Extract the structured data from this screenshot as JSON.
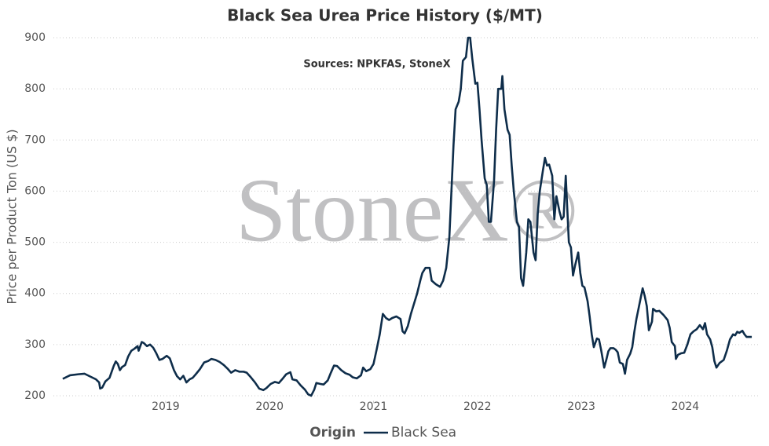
{
  "chart_data": {
    "type": "line",
    "title": "Black Sea Urea Price History ($/MT)",
    "annotation": "Sources: NPKFAS, StoneX",
    "watermark": "StoneX®",
    "y_label": "Price per Product Ton (US $)",
    "legend_title": "Origin",
    "legend_position": "bottom",
    "grid": true,
    "xlim": [
      2017.92,
      2024.7
    ],
    "xticks": [
      2019,
      2020,
      2021,
      2022,
      2023,
      2024
    ],
    "ylim": [
      190,
      910
    ],
    "yticks": [
      200,
      300,
      400,
      500,
      600,
      700,
      800,
      900
    ],
    "x": [
      2018.01,
      2018.08,
      2018.16,
      2018.22,
      2018.27,
      2018.33,
      2018.36,
      2018.37,
      2018.39,
      2018.42,
      2018.46,
      2018.5,
      2018.52,
      2018.54,
      2018.56,
      2018.58,
      2018.61,
      2018.64,
      2018.67,
      2018.7,
      2018.73,
      2018.74,
      2018.77,
      2018.79,
      2018.82,
      2018.85,
      2018.88,
      2018.91,
      2018.94,
      2018.97,
      2019.01,
      2019.04,
      2019.08,
      2019.11,
      2019.14,
      2019.17,
      2019.2,
      2019.23,
      2019.26,
      2019.29,
      2019.33,
      2019.37,
      2019.41,
      2019.44,
      2019.48,
      2019.52,
      2019.56,
      2019.6,
      2019.63,
      2019.67,
      2019.71,
      2019.75,
      2019.78,
      2019.82,
      2019.86,
      2019.9,
      2019.94,
      2019.97,
      2020.01,
      2020.05,
      2020.09,
      2020.12,
      2020.16,
      2020.2,
      2020.22,
      2020.26,
      2020.3,
      2020.34,
      2020.37,
      2020.4,
      2020.43,
      2020.45,
      2020.49,
      2020.52,
      2020.56,
      2020.59,
      2020.62,
      2020.65,
      2020.69,
      2020.73,
      2020.77,
      2020.8,
      2020.84,
      2020.88,
      2020.9,
      2020.93,
      2020.97,
      2021.0,
      2021.03,
      2021.06,
      2021.09,
      2021.12,
      2021.15,
      2021.18,
      2021.22,
      2021.26,
      2021.28,
      2021.3,
      2021.33,
      2021.36,
      2021.39,
      2021.42,
      2021.45,
      2021.47,
      2021.5,
      2021.54,
      2021.56,
      2021.6,
      2021.64,
      2021.67,
      2021.7,
      2021.73,
      2021.75,
      2021.77,
      2021.79,
      2021.82,
      2021.84,
      2021.86,
      2021.89,
      2021.91,
      2021.93,
      2021.95,
      2021.98,
      2022.0,
      2022.02,
      2022.04,
      2022.07,
      2022.09,
      2022.11,
      2022.13,
      2022.16,
      2022.18,
      2022.2,
      2022.23,
      2022.24,
      2022.26,
      2022.29,
      2022.31,
      2022.33,
      2022.35,
      2022.38,
      2022.4,
      2022.42,
      2022.44,
      2022.47,
      2022.49,
      2022.51,
      2022.54,
      2022.56,
      2022.58,
      2022.6,
      2022.63,
      2022.65,
      2022.67,
      2022.69,
      2022.72,
      2022.74,
      2022.76,
      2022.79,
      2022.81,
      2022.83,
      2022.85,
      2022.88,
      2022.9,
      2022.92,
      2022.94,
      2022.97,
      2022.99,
      2023.01,
      2023.03,
      2023.06,
      2023.08,
      2023.1,
      2023.12,
      2023.15,
      2023.17,
      2023.19,
      2023.22,
      2023.24,
      2023.26,
      2023.28,
      2023.31,
      2023.33,
      2023.35,
      2023.37,
      2023.4,
      2023.42,
      2023.44,
      2023.47,
      2023.49,
      2023.51,
      2023.53,
      2023.56,
      2023.59,
      2023.61,
      2023.63,
      2023.65,
      2023.68,
      2023.69,
      2023.72,
      2023.75,
      2023.79,
      2023.83,
      2023.85,
      2023.87,
      2023.9,
      2023.91,
      2023.93,
      2023.96,
      2023.99,
      2024.02,
      2024.05,
      2024.08,
      2024.11,
      2024.14,
      2024.17,
      2024.19,
      2024.21,
      2024.24,
      2024.26,
      2024.28,
      2024.3,
      2024.33,
      2024.37,
      2024.4,
      2024.43,
      2024.46,
      2024.48,
      2024.5,
      2024.52,
      2024.55,
      2024.57,
      2024.59,
      2024.64
    ],
    "series": [
      {
        "name": "Black Sea",
        "color": "#0e2d4a",
        "values": [
          233,
          240,
          242,
          243,
          238,
          232,
          226,
          214,
          216,
          228,
          235,
          258,
          267,
          262,
          250,
          256,
          260,
          277,
          288,
          292,
          297,
          288,
          305,
          303,
          297,
          300,
          294,
          283,
          270,
          272,
          278,
          273,
          250,
          238,
          232,
          239,
          226,
          232,
          235,
          242,
          252,
          265,
          268,
          272,
          270,
          266,
          260,
          252,
          245,
          250,
          247,
          247,
          245,
          236,
          226,
          214,
          211,
          215,
          223,
          227,
          225,
          232,
          242,
          246,
          232,
          230,
          220,
          212,
          203,
          200,
          212,
          225,
          223,
          222,
          230,
          245,
          259,
          258,
          250,
          244,
          241,
          236,
          234,
          240,
          255,
          248,
          252,
          262,
          290,
          320,
          360,
          352,
          348,
          352,
          355,
          350,
          326,
          322,
          336,
          360,
          380,
          400,
          425,
          440,
          450,
          450,
          425,
          418,
          413,
          425,
          450,
          510,
          600,
          690,
          760,
          775,
          800,
          855,
          862,
          900,
          900,
          860,
          810,
          812,
          760,
          700,
          625,
          612,
          540,
          540,
          620,
          720,
          800,
          800,
          825,
          760,
          720,
          710,
          650,
          600,
          540,
          530,
          430,
          415,
          480,
          545,
          540,
          480,
          465,
          555,
          600,
          640,
          665,
          650,
          652,
          630,
          545,
          590,
          560,
          545,
          550,
          630,
          500,
          490,
          435,
          455,
          480,
          440,
          415,
          412,
          385,
          355,
          320,
          295,
          312,
          310,
          290,
          255,
          270,
          287,
          293,
          293,
          290,
          285,
          265,
          262,
          243,
          270,
          282,
          295,
          325,
          350,
          380,
          410,
          395,
          375,
          328,
          345,
          370,
          365,
          366,
          358,
          348,
          333,
          305,
          297,
          272,
          280,
          283,
          284,
          300,
          320,
          326,
          330,
          338,
          330,
          342,
          320,
          310,
          295,
          268,
          255,
          264,
          270,
          288,
          310,
          320,
          318,
          325,
          323,
          327,
          320,
          315,
          315
        ]
      }
    ]
  }
}
